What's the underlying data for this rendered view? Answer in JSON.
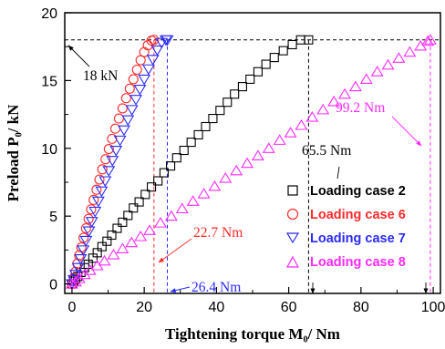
{
  "chart_data": {
    "type": "scatter",
    "xlabel": "Tightening torque M₀/ Nm",
    "ylabel": "Preload P₀/ kN",
    "xlim": [
      -2,
      102
    ],
    "ylim": [
      -0.7,
      20
    ],
    "xticks": [
      0,
      20,
      40,
      60,
      80,
      100
    ],
    "yticks": [
      0,
      5,
      10,
      15,
      20
    ],
    "grid": false,
    "legend_position": "bottom-right",
    "series": [
      {
        "name": "Loading case 2",
        "color": "#000000",
        "marker": "square",
        "points": [
          [
            0,
            0
          ],
          [
            0.5,
            0.2
          ],
          [
            1,
            0.35
          ],
          [
            1.6,
            0.55
          ],
          [
            2.5,
            0.85
          ],
          [
            3.5,
            1.2
          ],
          [
            4.5,
            1.45
          ],
          [
            5.8,
            1.9
          ],
          [
            7,
            2.3
          ],
          [
            8.3,
            2.75
          ],
          [
            9.7,
            3.15
          ],
          [
            11,
            3.6
          ],
          [
            12.5,
            4.1
          ],
          [
            14,
            4.55
          ],
          [
            15.5,
            5.05
          ],
          [
            17,
            5.6
          ],
          [
            18.6,
            6.05
          ],
          [
            20.3,
            6.6
          ],
          [
            22,
            7.15
          ],
          [
            23.8,
            7.6
          ],
          [
            25.5,
            8.2
          ],
          [
            27.3,
            8.7
          ],
          [
            29,
            9.3
          ],
          [
            31,
            9.85
          ],
          [
            33,
            10.45
          ],
          [
            35,
            11.0
          ],
          [
            37,
            11.6
          ],
          [
            39,
            12.2
          ],
          [
            41,
            12.8
          ],
          [
            43,
            13.4
          ],
          [
            45,
            14.0
          ],
          [
            47.2,
            14.55
          ],
          [
            49.3,
            15.1
          ],
          [
            51.5,
            15.65
          ],
          [
            53.7,
            16.2
          ],
          [
            56,
            16.7
          ],
          [
            58.5,
            17.2
          ],
          [
            61,
            17.65
          ],
          [
            63.3,
            18.0
          ],
          [
            65.5,
            18.0
          ]
        ]
      },
      {
        "name": "Loading case 6",
        "color": "#ff2a2a",
        "marker": "circle",
        "points": [
          [
            0,
            0
          ],
          [
            0.5,
            0.45
          ],
          [
            1,
            0.9
          ],
          [
            1.5,
            1.5
          ],
          [
            2,
            2.1
          ],
          [
            2.6,
            2.7
          ],
          [
            3.2,
            3.4
          ],
          [
            3.9,
            4.1
          ],
          [
            4.6,
            4.8
          ],
          [
            5.3,
            5.5
          ],
          [
            6,
            6.2
          ],
          [
            6.8,
            6.95
          ],
          [
            7.6,
            7.7
          ],
          [
            8.4,
            8.45
          ],
          [
            9.3,
            9.2
          ],
          [
            10.2,
            9.95
          ],
          [
            11.1,
            10.7
          ],
          [
            12,
            11.45
          ],
          [
            13,
            12.2
          ],
          [
            14,
            12.95
          ],
          [
            15,
            13.7
          ],
          [
            16,
            14.4
          ],
          [
            17,
            15.1
          ],
          [
            18,
            15.8
          ],
          [
            19,
            16.5
          ],
          [
            20,
            17.1
          ],
          [
            21,
            17.6
          ],
          [
            22,
            17.95
          ],
          [
            22.7,
            18.0
          ]
        ]
      },
      {
        "name": "Loading case 7",
        "color": "#2a2aff",
        "marker": "triangle-down",
        "points": [
          [
            0,
            0
          ],
          [
            0.5,
            0.3
          ],
          [
            1,
            0.7
          ],
          [
            1.7,
            1.2
          ],
          [
            2.4,
            1.85
          ],
          [
            3.1,
            2.5
          ],
          [
            3.9,
            3.2
          ],
          [
            4.7,
            3.9
          ],
          [
            5.5,
            4.6
          ],
          [
            6.4,
            5.35
          ],
          [
            7.3,
            6.1
          ],
          [
            8.2,
            6.85
          ],
          [
            9.2,
            7.6
          ],
          [
            10.2,
            8.35
          ],
          [
            11.2,
            9.1
          ],
          [
            12.2,
            9.85
          ],
          [
            13.3,
            10.6
          ],
          [
            14.4,
            11.35
          ],
          [
            15.5,
            12.1
          ],
          [
            16.6,
            12.85
          ],
          [
            17.7,
            13.6
          ],
          [
            18.8,
            14.35
          ],
          [
            20,
            15.1
          ],
          [
            21.2,
            15.85
          ],
          [
            22.4,
            16.55
          ],
          [
            23.6,
            17.25
          ],
          [
            24.8,
            17.8
          ],
          [
            26,
            18.0
          ],
          [
            26.4,
            18.0
          ]
        ]
      },
      {
        "name": "Loading case 8",
        "color": "#ff2aff",
        "marker": "triangle-up",
        "points": [
          [
            0,
            0
          ],
          [
            1,
            0.15
          ],
          [
            2,
            0.4
          ],
          [
            3.5,
            0.7
          ],
          [
            5,
            1.0
          ],
          [
            7,
            1.35
          ],
          [
            9,
            1.7
          ],
          [
            11.5,
            2.15
          ],
          [
            14,
            2.6
          ],
          [
            16.5,
            3.05
          ],
          [
            19,
            3.5
          ],
          [
            21.5,
            3.95
          ],
          [
            24.5,
            4.5
          ],
          [
            27.5,
            5.0
          ],
          [
            30.5,
            5.55
          ],
          [
            33.5,
            6.1
          ],
          [
            36.5,
            6.65
          ],
          [
            39.5,
            7.2
          ],
          [
            42.5,
            7.8
          ],
          [
            45.5,
            8.35
          ],
          [
            48.5,
            8.9
          ],
          [
            51.5,
            9.45
          ],
          [
            54.5,
            10.0
          ],
          [
            57.5,
            10.6
          ],
          [
            60.5,
            11.15
          ],
          [
            63.5,
            11.7
          ],
          [
            66.5,
            12.3
          ],
          [
            69.5,
            12.85
          ],
          [
            72.5,
            13.45
          ],
          [
            75.5,
            14.0
          ],
          [
            78.5,
            14.55
          ],
          [
            81.5,
            15.1
          ],
          [
            84.5,
            15.65
          ],
          [
            87.5,
            16.15
          ],
          [
            90.5,
            16.65
          ],
          [
            93.5,
            17.1
          ],
          [
            96.5,
            17.55
          ],
          [
            98.5,
            17.9
          ],
          [
            99.2,
            18.0
          ]
        ]
      }
    ],
    "reference_lines": [
      {
        "kind": "hline",
        "y": 18,
        "color": "#000000",
        "label": "18 kN"
      },
      {
        "kind": "vline",
        "x": 22.7,
        "color": "#ff2a2a",
        "label": "22.7 Nm"
      },
      {
        "kind": "vline",
        "x": 26.4,
        "color": "#2a2aff",
        "label": "26.4 Nm"
      },
      {
        "kind": "vline",
        "x": 65.5,
        "color": "#000000",
        "label": "65.5 Nm"
      },
      {
        "kind": "vline",
        "x": 99.2,
        "color": "#ff2aff",
        "label": "99.2 Nm"
      }
    ]
  }
}
